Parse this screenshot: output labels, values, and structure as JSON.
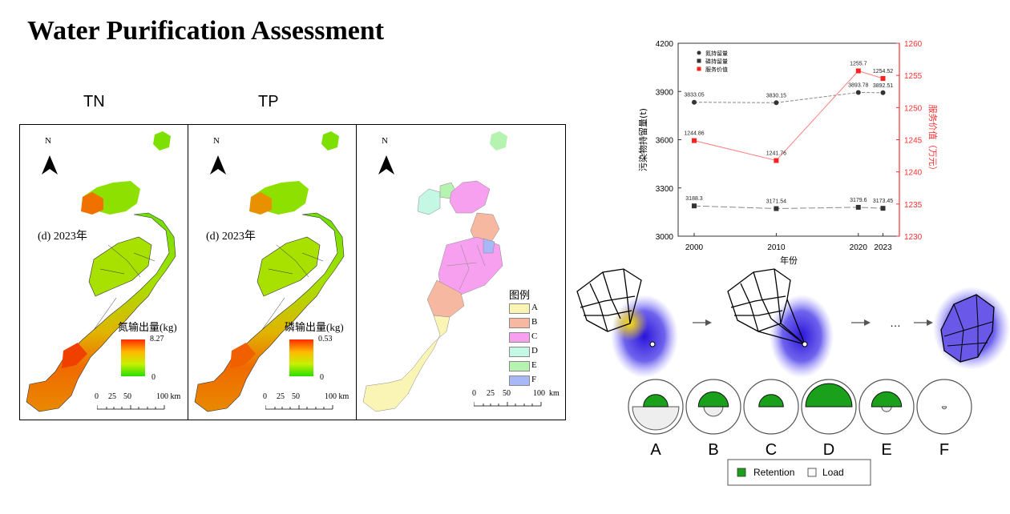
{
  "title": "Water Purification Assessment",
  "panel_labels": {
    "tn": "TN",
    "tp": "TP"
  },
  "maps": {
    "north_label": "N",
    "year_label": "(d) 2023年",
    "tn": {
      "legend_title": "氮输出量(kg)",
      "max": "8.27",
      "min": "0"
    },
    "tp": {
      "legend_title": "磷输出量(kg)",
      "max": "0.53",
      "min": "0"
    },
    "scalebar": {
      "ticks": [
        "0",
        "25",
        "50",
        "100 km"
      ]
    },
    "scalebar3": {
      "ticks": [
        "0",
        "25",
        "50",
        "100",
        "km"
      ]
    },
    "categories": {
      "title": "图例",
      "items": [
        {
          "label": "A",
          "color": "#fbf5b5"
        },
        {
          "label": "B",
          "color": "#f6b8a0"
        },
        {
          "label": "C",
          "color": "#f7a0f0"
        },
        {
          "label": "D",
          "color": "#c4f7e4"
        },
        {
          "label": "E",
          "color": "#b6f2b0"
        },
        {
          "label": "F",
          "color": "#a8b8f7"
        }
      ]
    }
  },
  "chart_data": {
    "type": "line",
    "x": [
      2000,
      2010,
      2020,
      2023
    ],
    "xlabel": "年份",
    "ylabel_left": "污染物持留量(t)",
    "ylabel_right": "服务价值（万元）",
    "ylim_left": [
      3000,
      4200
    ],
    "ylim_right": [
      1230,
      1260
    ],
    "yticks_left": [
      3000,
      3300,
      3600,
      3900,
      4200
    ],
    "yticks_right": [
      1230,
      1235,
      1240,
      1245,
      1250,
      1255,
      1260
    ],
    "series": [
      {
        "name": "氮持留量",
        "axis": "left",
        "values": [
          3833.05,
          3830.15,
          3893.78,
          3892.51
        ],
        "labels": [
          "3833.05",
          "3830.15",
          "3893.78",
          "3892.51"
        ],
        "color": "#333333"
      },
      {
        "name": "磷持留量",
        "axis": "left",
        "values": [
          3188.3,
          3171.54,
          3179.6,
          3173.45
        ],
        "labels": [
          "3188.3",
          "3171.54",
          "3179.6",
          "3173.45"
        ],
        "color": "#333333"
      },
      {
        "name": "服务价值",
        "axis": "right",
        "values": [
          1244.86,
          1241.76,
          1255.7,
          1254.52
        ],
        "labels": [
          "1244.86",
          "1241.76",
          "1255.7",
          "1254.52"
        ],
        "color": "#ff0000"
      }
    ],
    "legend_position": "top-left"
  },
  "diagram": {
    "ellipsis": "…",
    "circles": [
      {
        "label": "A",
        "retention": 0.45,
        "load": 0.85
      },
      {
        "label": "B",
        "retention": 0.55,
        "load": 0.35
      },
      {
        "label": "C",
        "retention": 0.45,
        "load": 0.0
      },
      {
        "label": "D",
        "retention": 0.85,
        "load": 0.0
      },
      {
        "label": "E",
        "retention": 0.55,
        "load": 0.18
      },
      {
        "label": "F",
        "retention": 0.0,
        "load": 0.08
      }
    ],
    "legend": {
      "retention": "Retention",
      "load": "Load"
    }
  }
}
